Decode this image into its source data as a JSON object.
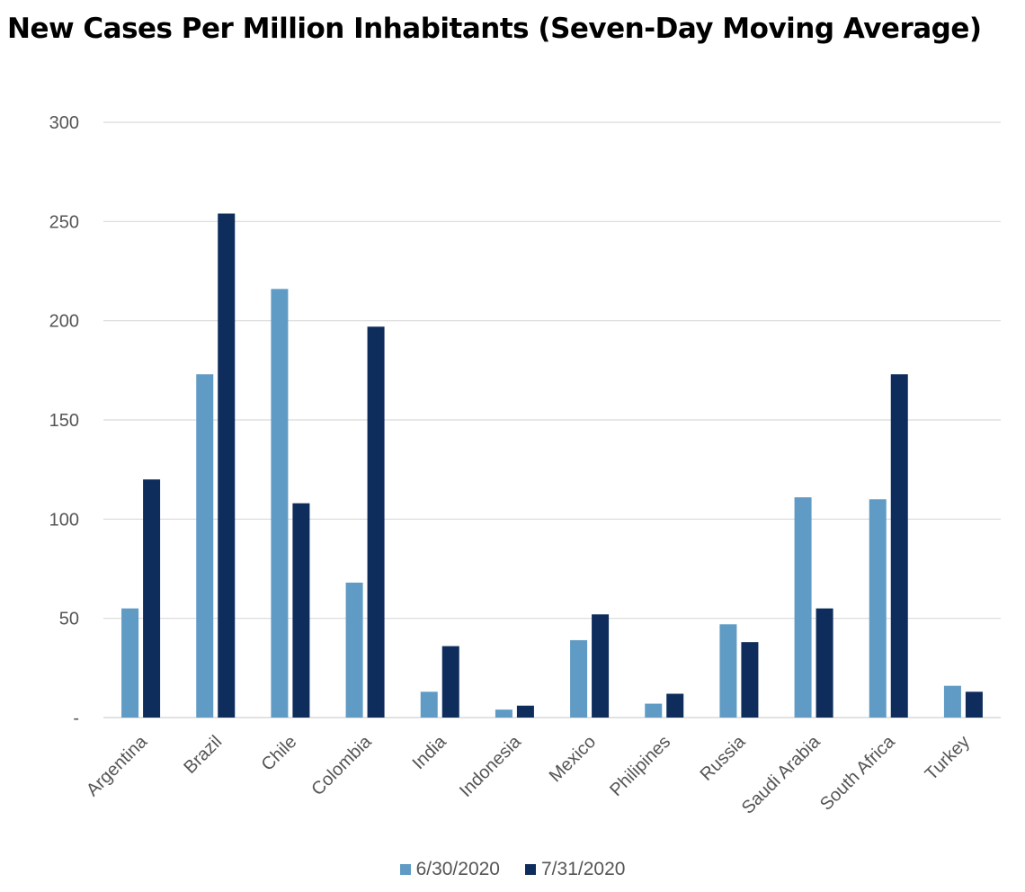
{
  "chart_data": {
    "type": "bar",
    "title": "New Cases Per Million Inhabitants (Seven-Day Moving Average)",
    "xlabel": "",
    "ylabel": "",
    "ylim": [
      0,
      300
    ],
    "yticks": [
      0,
      50,
      100,
      150,
      200,
      250,
      300
    ],
    "ytick_labels": [
      "-",
      "50",
      "100",
      "150",
      "200",
      "250",
      "300"
    ],
    "grid": true,
    "legend_position": "bottom",
    "categories": [
      "Argentina",
      "Brazil",
      "Chile",
      "Colombia",
      "India",
      "Indonesia",
      "Mexico",
      "Philipines",
      "Russia",
      "Saudi Arabia",
      "South Africa",
      "Turkey"
    ],
    "series": [
      {
        "name": "6/30/2020",
        "color": "#5f9bc4",
        "values": [
          55,
          173,
          216,
          68,
          13,
          4,
          39,
          7,
          47,
          111,
          110,
          16
        ]
      },
      {
        "name": "7/31/2020",
        "color": "#0e2d5c",
        "values": [
          120,
          254,
          108,
          197,
          36,
          6,
          52,
          12,
          38,
          55,
          173,
          13
        ]
      }
    ]
  }
}
